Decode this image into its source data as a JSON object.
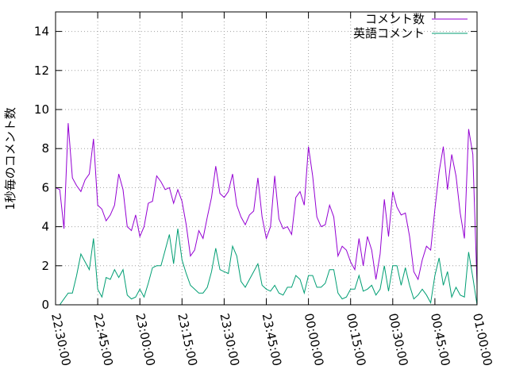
{
  "chart_data": {
    "type": "line",
    "ylabel": "1秒毎のコメント数",
    "ylim": [
      0,
      15
    ],
    "yticks": [
      0,
      2,
      4,
      6,
      8,
      10,
      12,
      14
    ],
    "xlim": [
      "22:30:00",
      "01:00:00"
    ],
    "xticks": [
      "22:30:00",
      "22:45:00",
      "23:00:00",
      "23:15:00",
      "23:30:00",
      "23:45:00",
      "00:00:00",
      "00:15:00",
      "00:30:00",
      "00:45:00",
      "01:00:00"
    ],
    "grid": true,
    "legend": "top-right",
    "x_start": "22:30:00",
    "x_step_seconds": 90,
    "series": [
      {
        "name": "コメント数",
        "color": "#9400d3",
        "values": [
          6.0,
          5.9,
          3.9,
          9.3,
          6.5,
          6.1,
          5.8,
          6.4,
          6.7,
          8.5,
          5.1,
          4.9,
          4.3,
          4.6,
          5.1,
          6.7,
          5.9,
          4.0,
          3.8,
          4.6,
          3.5,
          4.0,
          5.2,
          5.3,
          6.6,
          6.3,
          5.9,
          6.0,
          5.2,
          5.9,
          5.3,
          4.1,
          2.5,
          2.8,
          3.8,
          3.4,
          4.5,
          5.5,
          7.1,
          5.7,
          5.5,
          5.8,
          6.7,
          5.1,
          4.5,
          4.1,
          4.6,
          4.8,
          6.5,
          4.5,
          3.4,
          4.0,
          6.6,
          4.4,
          3.9,
          4.0,
          3.6,
          5.5,
          5.8,
          5.1,
          8.1,
          6.6,
          4.5,
          4.0,
          4.1,
          5.1,
          4.5,
          2.5,
          3.0,
          2.8,
          2.2,
          1.8,
          3.4,
          2.0,
          3.5,
          2.8,
          1.3,
          2.6,
          5.4,
          3.5,
          5.8,
          5.0,
          4.6,
          4.7,
          3.5,
          1.7,
          1.3,
          2.3,
          3.0,
          2.8,
          4.9,
          6.8,
          8.1,
          5.9,
          7.7,
          6.6,
          4.7,
          3.4,
          9.0,
          7.7,
          1.0
        ]
      },
      {
        "name": "英語コメント",
        "color": "#009e73",
        "values": [
          0.0,
          0.0,
          0.3,
          0.6,
          0.6,
          1.5,
          2.6,
          2.2,
          1.8,
          3.4,
          0.8,
          0.4,
          1.4,
          1.3,
          1.8,
          1.4,
          1.8,
          0.5,
          0.3,
          0.4,
          0.8,
          0.4,
          1.1,
          1.9,
          2.0,
          2.0,
          2.8,
          3.6,
          2.1,
          3.9,
          2.3,
          1.6,
          1.0,
          0.8,
          0.6,
          0.6,
          0.9,
          1.7,
          2.9,
          1.8,
          1.7,
          1.6,
          3.0,
          2.5,
          1.2,
          0.9,
          1.3,
          1.7,
          2.1,
          1.0,
          0.8,
          0.7,
          1.0,
          0.6,
          0.5,
          0.9,
          0.9,
          1.5,
          1.3,
          0.6,
          1.5,
          1.5,
          0.9,
          0.9,
          1.1,
          1.8,
          1.8,
          0.6,
          0.3,
          0.4,
          0.8,
          0.8,
          1.5,
          0.7,
          0.8,
          1.0,
          0.5,
          0.8,
          2.0,
          0.7,
          2.0,
          2.0,
          1.0,
          1.9,
          1.0,
          0.3,
          0.5,
          0.8,
          0.5,
          0.1,
          1.5,
          2.4,
          1.0,
          1.7,
          0.4,
          0.9,
          0.5,
          0.4,
          2.7,
          1.4,
          0.0
        ]
      }
    ]
  }
}
